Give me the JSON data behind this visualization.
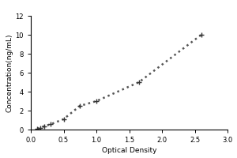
{
  "x": [
    0.1,
    0.15,
    0.2,
    0.3,
    0.5,
    0.75,
    1.0,
    1.65,
    2.6
  ],
  "y": [
    0.1,
    0.2,
    0.35,
    0.55,
    1.1,
    2.5,
    3.0,
    5.0,
    10.0
  ],
  "xlabel": "Optical Density",
  "ylabel": "Concentration(ng/mL)",
  "xlim": [
    0,
    3
  ],
  "ylim": [
    0,
    12
  ],
  "xticks": [
    0,
    0.5,
    1,
    1.5,
    2,
    2.5,
    3
  ],
  "yticks": [
    0,
    2,
    4,
    6,
    8,
    10,
    12
  ],
  "line_color": "#555555",
  "marker": "+",
  "marker_size": 5,
  "marker_color": "#333333",
  "linestyle": "dotted",
  "linewidth": 1.8,
  "bg_color": "#ffffff",
  "label_fontsize": 6.5,
  "tick_fontsize": 6,
  "fig_width": 3.0,
  "fig_height": 2.0,
  "outer_bg": "#e8e8e8"
}
